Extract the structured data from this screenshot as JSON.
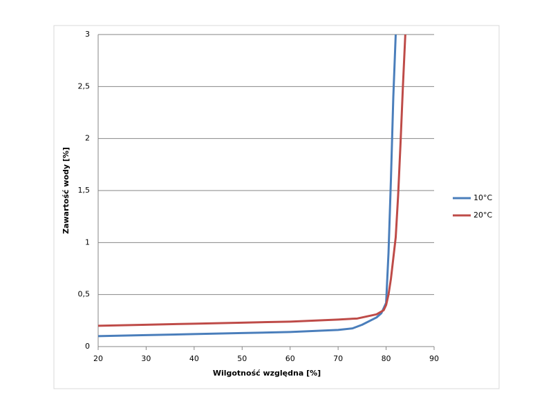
{
  "chart_data": {
    "type": "line",
    "xlabel": "Wilgotność względna [%]",
    "ylabel": "Zawartość wody [%]",
    "xlim": [
      20,
      90
    ],
    "xticks": [
      20,
      30,
      40,
      50,
      60,
      70,
      80,
      90
    ],
    "ylim": [
      0,
      3
    ],
    "yticks": [
      0,
      {
        "value": 0.5,
        "label": "0,5"
      },
      1,
      {
        "value": 1.5,
        "label": "1,5"
      },
      2,
      {
        "value": 2.5,
        "label": "2,5"
      },
      3
    ],
    "grid": true,
    "legend": "right",
    "series": [
      {
        "name": "10°C",
        "color": "#4a7ebb",
        "x": [
          20,
          30,
          40,
          50,
          60,
          70,
          73,
          75,
          78,
          79,
          80,
          80.5,
          81,
          81.5,
          82
        ],
        "values": [
          0.1,
          0.11,
          0.12,
          0.13,
          0.14,
          0.16,
          0.175,
          0.21,
          0.28,
          0.32,
          0.42,
          0.9,
          1.6,
          2.4,
          3.0
        ]
      },
      {
        "name": "20°C",
        "color": "#be4b48",
        "x": [
          20,
          30,
          40,
          50,
          60,
          70,
          74,
          76,
          78,
          79.5,
          80,
          80.5,
          81,
          81.5,
          82,
          82.5,
          83,
          83.5,
          84
        ],
        "values": [
          0.2,
          0.21,
          0.22,
          0.23,
          0.24,
          0.26,
          0.27,
          0.29,
          0.31,
          0.35,
          0.4,
          0.5,
          0.65,
          0.85,
          1.05,
          1.45,
          1.95,
          2.5,
          3.0
        ]
      }
    ]
  }
}
